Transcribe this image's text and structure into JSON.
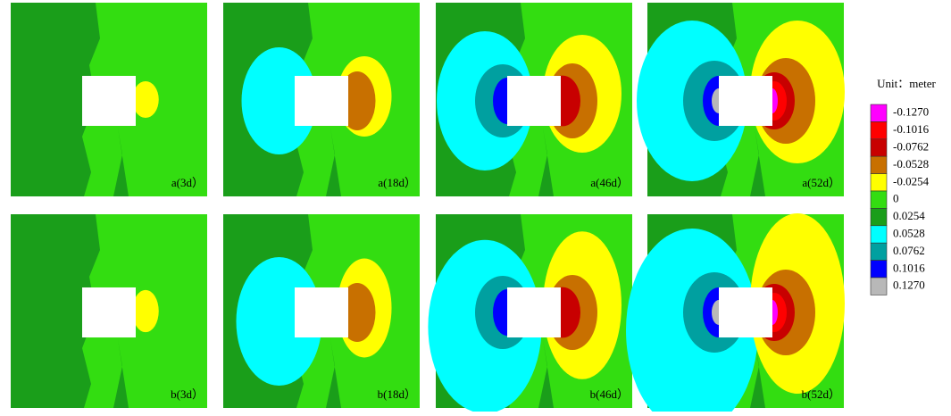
{
  "panels": [
    {
      "label": "a(3d）"
    },
    {
      "label": "a(18d）"
    },
    {
      "label": "a(46d）"
    },
    {
      "label": "a(52d）"
    },
    {
      "label": "b(3d）"
    },
    {
      "label": "b(18d）"
    },
    {
      "label": "b(46d）"
    },
    {
      "label": "b(52d）"
    }
  ],
  "legend": {
    "title": "Unit：meter",
    "items": [
      {
        "label": "-0.1270",
        "color": "#ff00ff"
      },
      {
        "label": "-0.1016",
        "color": "#ff0000"
      },
      {
        "label": "-0.0762",
        "color": "#c80000"
      },
      {
        "label": "-0.0528",
        "color": "#c87000"
      },
      {
        "label": "-0.0254",
        "color": "#ffff00"
      },
      {
        "label": "0",
        "color": "#33dd11"
      },
      {
        "label": "0.0254",
        "color": "#1a9e1a"
      },
      {
        "label": "0.0528",
        "color": "#00ffff"
      },
      {
        "label": "0.0762",
        "color": "#00a0a0"
      },
      {
        "label": "0.1016",
        "color": "#0000ff"
      },
      {
        "label": "0.1270",
        "color": "#b8b8b8"
      }
    ]
  }
}
